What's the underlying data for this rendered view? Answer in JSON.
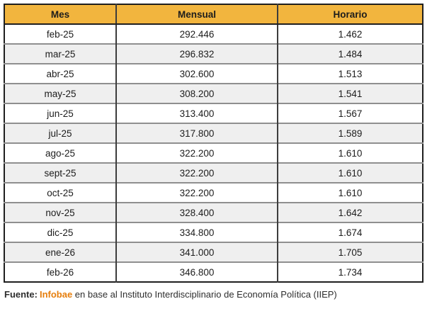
{
  "table": {
    "headers": [
      "Mes",
      "Mensual",
      "Horario"
    ],
    "rows": [
      {
        "mes": "feb-25",
        "mensual": "292.446",
        "horario": "1.462"
      },
      {
        "mes": "mar-25",
        "mensual": "296.832",
        "horario": "1.484"
      },
      {
        "mes": "abr-25",
        "mensual": "302.600",
        "horario": "1.513"
      },
      {
        "mes": "may-25",
        "mensual": "308.200",
        "horario": "1.541"
      },
      {
        "mes": "jun-25",
        "mensual": "313.400",
        "horario": "1.567"
      },
      {
        "mes": "jul-25",
        "mensual": "317.800",
        "horario": "1.589"
      },
      {
        "mes": "ago-25",
        "mensual": "322.200",
        "horario": "1.610"
      },
      {
        "mes": "sept-25",
        "mensual": "322.200",
        "horario": "1.610"
      },
      {
        "mes": "oct-25",
        "mensual": "322.200",
        "horario": "1.610"
      },
      {
        "mes": "nov-25",
        "mensual": "328.400",
        "horario": "1.642"
      },
      {
        "mes": "dic-25",
        "mensual": "334.800",
        "horario": "1.674"
      },
      {
        "mes": "ene-26",
        "mensual": "341.000",
        "horario": "1.705"
      },
      {
        "mes": "feb-26",
        "mensual": "346.800",
        "horario": "1.734"
      }
    ]
  },
  "footer": {
    "fuente_label": "Fuente:",
    "source": "Infobae",
    "rest": " en base al Instituto Interdisciplinario de Economía Política (IIEP)"
  },
  "colors": {
    "header_background": "#F2B53E",
    "row_alt_background": "#efefef",
    "outer_border": "#1f1f1f",
    "column_separator": "#3c3c3c",
    "row_separator": "#8f8f8f",
    "source_accent": "#E67E0C"
  },
  "chart_data": {
    "type": "table",
    "title": "",
    "columns": [
      "Mes",
      "Mensual",
      "Horario"
    ],
    "rows": [
      [
        "feb-25",
        292446,
        1462
      ],
      [
        "mar-25",
        296832,
        1484
      ],
      [
        "abr-25",
        302600,
        1513
      ],
      [
        "may-25",
        308200,
        1541
      ],
      [
        "jun-25",
        313400,
        1567
      ],
      [
        "jul-25",
        317800,
        1589
      ],
      [
        "ago-25",
        322200,
        1610
      ],
      [
        "sept-25",
        322200,
        1610
      ],
      [
        "oct-25",
        322200,
        1610
      ],
      [
        "nov-25",
        328400,
        1642
      ],
      [
        "dic-25",
        334800,
        1674
      ],
      [
        "ene-26",
        341000,
        1705
      ],
      [
        "feb-26",
        346800,
        1734
      ]
    ],
    "notes": "Values in 'Mensual' and 'Horario' use dot as thousands separator; alternating row shading; source caption below table"
  }
}
